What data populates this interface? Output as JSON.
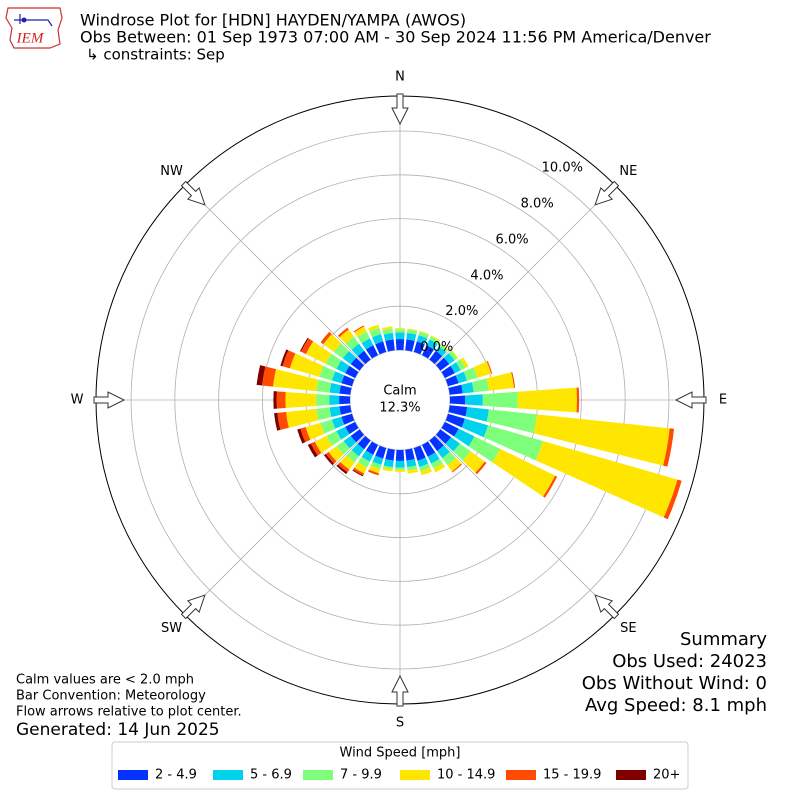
{
  "chart_data": {
    "type": "windrose",
    "logo_text": "IEM",
    "title": "Windrose Plot for [HDN] HAYDEN/YAMPA (AWOS)",
    "subtitle": "Obs Between: 01 Sep 1973 07:00 AM - 30 Sep 2024 11:56 PM America/Denver",
    "constraints": "↳ constraints: Sep",
    "calm_label": "Calm",
    "calm_value": 12.3,
    "calm_value_label": "12.3%",
    "x": [
      0,
      10,
      20,
      30,
      40,
      50,
      60,
      70,
      80,
      90,
      100,
      110,
      120,
      130,
      140,
      150,
      160,
      170,
      180,
      190,
      200,
      210,
      220,
      230,
      240,
      250,
      260,
      270,
      280,
      290,
      300,
      310,
      320,
      330,
      340,
      350
    ],
    "xticks": [
      {
        "value": 0,
        "label": "N"
      },
      {
        "value": 45,
        "label": "NE"
      },
      {
        "value": 90,
        "label": "E"
      },
      {
        "value": 135,
        "label": "SE"
      },
      {
        "value": 180,
        "label": "S"
      },
      {
        "value": 225,
        "label": "SW"
      },
      {
        "value": 270,
        "label": "W"
      },
      {
        "value": 315,
        "label": "NW"
      }
    ],
    "rlim": [
      0,
      11.6
    ],
    "rticks": [
      {
        "value": 0,
        "label": "0.0%"
      },
      {
        "value": 2,
        "label": "2.0%"
      },
      {
        "value": 4,
        "label": "4.0%"
      },
      {
        "value": 6,
        "label": "6.0%"
      },
      {
        "value": 8,
        "label": "8.0%"
      },
      {
        "value": 10,
        "label": "10.0%"
      }
    ],
    "grid": true,
    "legend_title": "Wind Speed [mph]",
    "series": [
      {
        "name": "2 - 4.9",
        "color": "#0433ff",
        "values": [
          0.5,
          0.5,
          0.5,
          0.5,
          0.5,
          0.5,
          0.5,
          0.5,
          0.6,
          0.7,
          0.8,
          0.8,
          0.7,
          0.6,
          0.6,
          0.6,
          0.6,
          0.5,
          0.5,
          0.5,
          0.5,
          0.5,
          0.5,
          0.5,
          0.5,
          0.5,
          0.5,
          0.5,
          0.5,
          0.5,
          0.5,
          0.5,
          0.5,
          0.5,
          0.5,
          0.5
        ]
      },
      {
        "name": "5 - 6.9",
        "color": "#00d2ee",
        "values": [
          0.3,
          0.3,
          0.3,
          0.3,
          0.25,
          0.3,
          0.3,
          0.4,
          0.5,
          0.8,
          1.0,
          1.1,
          0.8,
          0.5,
          0.4,
          0.35,
          0.3,
          0.3,
          0.3,
          0.3,
          0.3,
          0.35,
          0.4,
          0.4,
          0.45,
          0.45,
          0.45,
          0.45,
          0.45,
          0.45,
          0.45,
          0.45,
          0.4,
          0.35,
          0.35,
          0.3
        ]
      },
      {
        "name": "7 - 9.9",
        "color": "#7dff7b",
        "values": [
          0.15,
          0.15,
          0.15,
          0.15,
          0.1,
          0.15,
          0.25,
          0.5,
          0.7,
          1.6,
          2.2,
          2.6,
          1.3,
          0.6,
          0.4,
          0.25,
          0.2,
          0.15,
          0.1,
          0.1,
          0.2,
          0.3,
          0.35,
          0.4,
          0.5,
          0.55,
          0.6,
          0.6,
          0.6,
          0.6,
          0.55,
          0.5,
          0.4,
          0.35,
          0.3,
          0.2
        ]
      },
      {
        "name": "10 - 14.9",
        "color": "#ffe600",
        "values": [
          0.05,
          0.05,
          0.05,
          0.05,
          0.05,
          0.05,
          0.15,
          0.65,
          1.15,
          2.7,
          6.1,
          6.4,
          2.8,
          0.8,
          0.35,
          0.2,
          0.2,
          0.15,
          0.1,
          0.1,
          0.2,
          0.3,
          0.4,
          0.45,
          0.6,
          0.7,
          1.4,
          1.4,
          2.0,
          1.4,
          1.0,
          0.6,
          0.4,
          0.25,
          0.15,
          0.1
        ]
      },
      {
        "name": "15 - 19.9",
        "color": "#ff4a00",
        "values": [
          0,
          0,
          0,
          0,
          0,
          0,
          0,
          0.05,
          0.05,
          0.1,
          0.2,
          0.2,
          0.1,
          0.1,
          0.05,
          0,
          0,
          0,
          0,
          0,
          0.1,
          0.1,
          0.15,
          0.15,
          0.2,
          0.25,
          0.4,
          0.4,
          0.5,
          0.35,
          0.25,
          0.15,
          0.1,
          0.05,
          0,
          0
        ]
      },
      {
        "name": "20+",
        "color": "#800000",
        "values": [
          0,
          0,
          0,
          0,
          0,
          0,
          0,
          0,
          0,
          0,
          0,
          0,
          0,
          0,
          0,
          0,
          0,
          0,
          0,
          0,
          0,
          0.05,
          0.1,
          0.1,
          0.15,
          0.15,
          0.15,
          0.15,
          0.25,
          0.1,
          0.05,
          0,
          0,
          0,
          0,
          0
        ]
      }
    ],
    "summary_title": "Summary",
    "summary_lines": [
      "Obs Used: 24023",
      "Obs Without Wind: 0",
      "Avg Speed: 8.1 mph"
    ],
    "footnotes": [
      "Calm values are < 2.0 mph",
      "Bar Convention: Meteorology",
      "Flow arrows relative to plot center."
    ],
    "generated": "Generated: 14 Jun 2025"
  }
}
